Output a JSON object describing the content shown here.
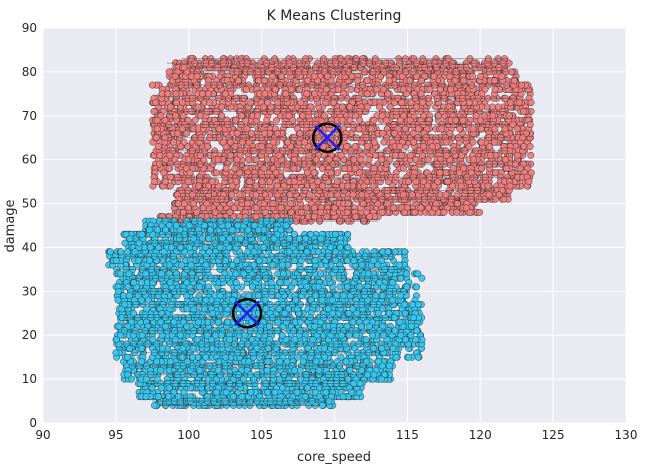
{
  "chart_data": {
    "type": "scatter",
    "title": "K Means Clustering",
    "xlabel": "core_speed",
    "ylabel": "damage",
    "xlim": [
      90,
      130
    ],
    "ylim": [
      0,
      90
    ],
    "x_ticks": [
      "90",
      "95",
      "100",
      "105",
      "110",
      "115",
      "120",
      "125",
      "130"
    ],
    "y_ticks": [
      "0",
      "10",
      "20",
      "30",
      "40",
      "50",
      "60",
      "70",
      "80",
      "90"
    ],
    "grid": true,
    "background": "#eaeaf2",
    "clusters": [
      {
        "color": "#f07c7c",
        "x_range": [
          97,
          124.5
        ],
        "y_range": [
          46,
          83
        ],
        "centroid": {
          "x": 109.5,
          "y": 65
        }
      },
      {
        "color": "#33c7f0",
        "x_range": [
          94,
          118
        ],
        "y_range": [
          4,
          46
        ],
        "centroid": {
          "x": 104,
          "y": 25
        }
      }
    ],
    "centroid_marker": {
      "ring_color": "#000000",
      "cross_color": "#1f1fff"
    }
  }
}
